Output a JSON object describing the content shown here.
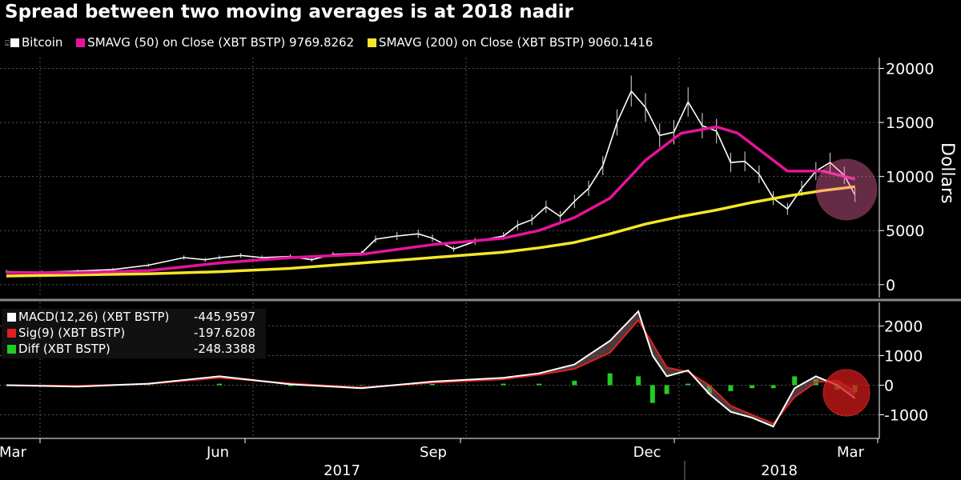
{
  "header": {
    "title": "Spread between two moving averages is at 2018 nadir"
  },
  "legend": {
    "items": [
      {
        "label": "Bitcoin",
        "color": "#ffffff",
        "icon": "candlestick-icon"
      },
      {
        "label": "SMAVG (50) on Close (XBT BSTP) 9769.8262",
        "color": "#e6139a"
      },
      {
        "label": "SMAVG (200) on Close (XBT BSTP) 9060.1416",
        "color": "#f5e628"
      }
    ]
  },
  "macd_legend": [
    {
      "label": "MACD(12,26) (XBT BSTP)",
      "value": "-445.9597",
      "color": "#ffffff"
    },
    {
      "label": "Sig(9) (XBT BSTP)",
      "value": "-197.6208",
      "color": "#e02020"
    },
    {
      "label": "Diff (XBT BSTP)",
      "value": "-248.3388",
      "color": "#22cc22"
    }
  ],
  "chart_data": [
    {
      "type": "line",
      "panel": "price",
      "title": "Spread between two moving averages is at 2018 nadir",
      "ylabel": "Dollars",
      "ylim": [
        -1200,
        21000
      ],
      "yticks": [
        0,
        5000,
        10000,
        15000,
        20000
      ],
      "ytick_labels": [
        "0",
        "5000",
        "10000",
        "15000",
        "20000"
      ],
      "x_range": [
        0,
        12
      ],
      "x_unit": "months since 2017-03-01",
      "series": [
        {
          "name": "Bitcoin",
          "kind": "candlestick-close",
          "color": "#ffffff",
          "x": [
            0,
            0.5,
            1,
            1.5,
            2,
            2.5,
            2.8,
            3,
            3.3,
            3.6,
            4,
            4.3,
            4.6,
            5,
            5.2,
            5.5,
            5.8,
            6,
            6.3,
            6.6,
            7,
            7.2,
            7.4,
            7.6,
            7.8,
            8,
            8.2,
            8.4,
            8.6,
            8.8,
            9,
            9.2,
            9.4,
            9.6,
            9.8,
            10,
            10.2,
            10.4,
            10.6,
            10.8,
            11,
            11.2,
            11.4,
            11.6,
            11.8,
            11.95
          ],
          "values": [
            1200,
            1150,
            1250,
            1400,
            1800,
            2500,
            2300,
            2500,
            2700,
            2500,
            2600,
            2300,
            2800,
            2900,
            4200,
            4500,
            4700,
            4300,
            3300,
            4000,
            4500,
            5500,
            6000,
            7200,
            6300,
            7700,
            8900,
            11000,
            15000,
            17900,
            16400,
            13800,
            14100,
            16900,
            14700,
            14200,
            11300,
            11400,
            10200,
            8000,
            7000,
            8900,
            10500,
            11300,
            10100,
            8300
          ]
        },
        {
          "name": "SMAVG (50) on Close (XBT BSTP)",
          "color": "#e6139a",
          "last_value": 9769.8262,
          "x": [
            0,
            1,
            2,
            3,
            4,
            5,
            6,
            7,
            7.5,
            8,
            8.5,
            9,
            9.5,
            10,
            10.3,
            10.6,
            11,
            11.5,
            11.95
          ],
          "values": [
            1100,
            1100,
            1300,
            2000,
            2500,
            2800,
            3700,
            4300,
            5000,
            6200,
            8000,
            11500,
            14000,
            14600,
            14000,
            12500,
            10500,
            10500,
            9770
          ]
        },
        {
          "name": "SMAVG (200) on Close (XBT BSTP)",
          "color": "#f5e628",
          "last_value": 9060.1416,
          "x": [
            0,
            1,
            2,
            3,
            4,
            5,
            6,
            7,
            7.5,
            8,
            8.5,
            9,
            9.5,
            10,
            10.5,
            11,
            11.5,
            11.95
          ],
          "values": [
            800,
            900,
            1000,
            1200,
            1500,
            2000,
            2500,
            3000,
            3400,
            3900,
            4700,
            5600,
            6300,
            6900,
            7600,
            8200,
            8700,
            9060
          ]
        }
      ],
      "annotations": [
        {
          "shape": "circle",
          "label": "",
          "where": "2018 nadir of the moving-average spread"
        }
      ]
    },
    {
      "type": "line",
      "panel": "macd",
      "ylim": [
        -1800,
        2800
      ],
      "yticks": [
        -1000,
        0,
        1000,
        2000
      ],
      "ytick_labels": [
        "-1000",
        "0",
        "1000",
        "2000"
      ],
      "x_range": [
        0,
        12
      ],
      "series": [
        {
          "name": "MACD(12,26) (XBT BSTP)",
          "color": "#ffffff",
          "last_value": -445.9597,
          "x": [
            0,
            1,
            2,
            3,
            4,
            5,
            6,
            7,
            7.5,
            8,
            8.5,
            8.9,
            9.1,
            9.3,
            9.6,
            9.9,
            10.2,
            10.5,
            10.8,
            11.1,
            11.4,
            11.7,
            11.95
          ],
          "values": [
            0,
            -50,
            50,
            300,
            30,
            -100,
            120,
            250,
            400,
            700,
            1500,
            2500,
            1000,
            300,
            500,
            -300,
            -900,
            -1100,
            -1400,
            -100,
            300,
            0,
            -446
          ]
        },
        {
          "name": "Sig(9) (XBT BSTP)",
          "color": "#e02020",
          "last_value": -197.6208,
          "x": [
            0,
            1,
            2,
            3,
            4,
            5,
            6,
            7,
            7.5,
            8,
            8.5,
            8.9,
            9.1,
            9.3,
            9.6,
            9.9,
            10.2,
            10.5,
            10.8,
            11.1,
            11.4,
            11.7,
            11.95
          ],
          "values": [
            0,
            -20,
            40,
            250,
            60,
            -80,
            80,
            200,
            350,
            550,
            1100,
            2200,
            1400,
            600,
            450,
            0,
            -700,
            -1000,
            -1300,
            -400,
            100,
            150,
            -198
          ]
        },
        {
          "name": "Diff (XBT BSTP)",
          "kind": "histogram",
          "color": "#22cc22",
          "last_value": -248.3388,
          "x": [
            0,
            1,
            2,
            3,
            4,
            5,
            6,
            7,
            7.5,
            8,
            8.5,
            8.9,
            9.1,
            9.3,
            9.6,
            9.9,
            10.2,
            10.5,
            10.8,
            11.1,
            11.4,
            11.7,
            11.95
          ],
          "values": [
            0,
            -30,
            10,
            50,
            -30,
            -20,
            40,
            50,
            50,
            150,
            400,
            300,
            -600,
            -300,
            50,
            -300,
            -200,
            -100,
            -100,
            300,
            200,
            -150,
            -248
          ]
        }
      ],
      "annotations": [
        {
          "shape": "circle",
          "label": "",
          "where": "latest MACD below signal"
        }
      ]
    }
  ],
  "x_axis": {
    "months": [
      {
        "label": "Mar",
        "x": 0
      },
      {
        "label": "Jun",
        "x": 3
      },
      {
        "label": "Sep",
        "x": 6
      },
      {
        "label": "Dec",
        "x": 9
      },
      {
        "label": "Mar",
        "x": 12
      }
    ],
    "years": [
      {
        "label": "2017",
        "x": 4.3
      },
      {
        "label": "2018",
        "x": 10.85
      }
    ],
    "year_divider_x": 10
  }
}
